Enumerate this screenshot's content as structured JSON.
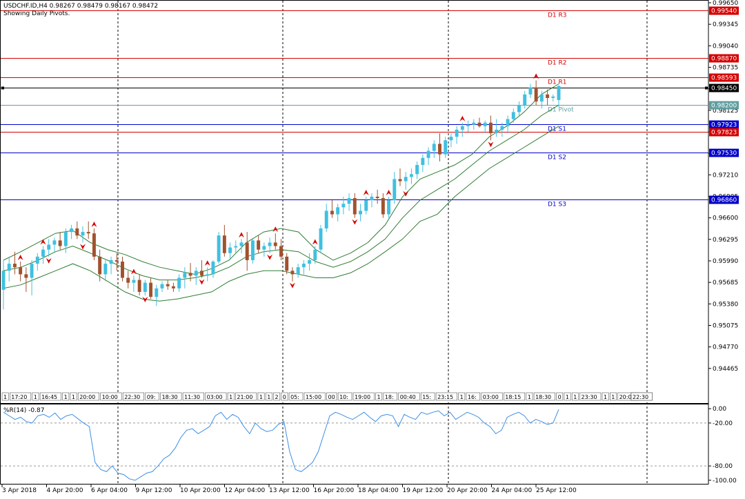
{
  "header": {
    "title": "USDCHF.ID,H4  0.98267 0.98479 0.98167 0.98472",
    "subtitle": "Showing Daily Pivots."
  },
  "indicator": {
    "label": "%R(14) -0.87"
  },
  "colors": {
    "bull": "#40c0e0",
    "bear": "#a0522d",
    "band": "#2e7d32",
    "resistance": "#d40000",
    "support": "#0000c8",
    "pivot": "#5f9ea0",
    "arrow": "#d40000",
    "wpr": "#3a8ee6"
  },
  "chart_data": [
    {
      "type": "candlestick",
      "title": "USDCHF.ID,H4",
      "ylim": [
        0.9415,
        0.9965
      ],
      "y_ticks": [
        "0.99650",
        "0.99345",
        "0.99040",
        "0.98735",
        "0.98430",
        "0.98125",
        "0.97820",
        "0.97515",
        "0.97210",
        "0.96905",
        "0.96600",
        "0.96295",
        "0.95990",
        "0.95685",
        "0.95380",
        "0.95075",
        "0.94770",
        "0.94465"
      ],
      "levels": [
        {
          "name": "D1 R3",
          "value": 0.9954,
          "label": "0.99540",
          "kind": "resistance"
        },
        {
          "name": "D1 R2",
          "value": 0.9887,
          "label": "0.98870",
          "kind": "resistance"
        },
        {
          "name": "D1 R1",
          "value": 0.98593,
          "label": "0.98593",
          "kind": "resistance"
        },
        {
          "name": "",
          "value": 0.9845,
          "label": "0.98450",
          "kind": "current"
        },
        {
          "name": "D1 Pivot",
          "value": 0.982,
          "label": "0.98200",
          "kind": "pivot"
        },
        {
          "name": "D1 S1",
          "value": 0.97923,
          "label": "0.97923",
          "kind": "support"
        },
        {
          "name": "",
          "value": 0.97823,
          "label": "0.97823",
          "kind": "resistance"
        },
        {
          "name": "D1 S2",
          "value": 0.9753,
          "label": "0.97530",
          "kind": "support"
        },
        {
          "name": "D1 S3",
          "value": 0.9686,
          "label": "0.96860",
          "kind": "support"
        }
      ],
      "x_tick_labels": [
        "3 Apr 2018",
        "4 Apr 20:00",
        "6 Apr 04:00",
        "9 Apr 12:00",
        "10 Apr 20:00",
        "12 Apr 04:00",
        "13 Apr 12:00",
        "16 Apr 20:00",
        "18 Apr 04:00",
        "19 Apr 12:00",
        "20 Apr 20:00",
        "24 Apr 04:00",
        "25 Apr 12:00"
      ],
      "period_separators": [
        "4 Apr 2018",
        "5 Apr 2018",
        "6 Apr 2018",
        "9 Apr 2018",
        "10 Apr 2018",
        "11 Apr 2018",
        "12 Apr 2018"
      ],
      "candles_ohlc": [
        [
          0.9558,
          0.96,
          0.953,
          0.9585
        ],
        [
          0.9585,
          0.9605,
          0.957,
          0.9595
        ],
        [
          0.9595,
          0.9612,
          0.958,
          0.959
        ],
        [
          0.959,
          0.9598,
          0.957,
          0.958
        ],
        [
          0.958,
          0.959,
          0.9555,
          0.9575
        ],
        [
          0.9575,
          0.96,
          0.955,
          0.9595
        ],
        [
          0.9595,
          0.961,
          0.9585,
          0.9605
        ],
        [
          0.9605,
          0.962,
          0.9595,
          0.9615
        ],
        [
          0.9615,
          0.963,
          0.9605,
          0.9622
        ],
        [
          0.9622,
          0.9632,
          0.9612,
          0.9628
        ],
        [
          0.9628,
          0.964,
          0.9615,
          0.962
        ],
        [
          0.962,
          0.9645,
          0.961,
          0.964
        ],
        [
          0.964,
          0.965,
          0.963,
          0.9645
        ],
        [
          0.9645,
          0.9655,
          0.963,
          0.9635
        ],
        [
          0.9635,
          0.9648,
          0.9625,
          0.964
        ],
        [
          0.964,
          0.9655,
          0.963,
          0.9638
        ],
        [
          0.9638,
          0.9645,
          0.96,
          0.9605
        ],
        [
          0.9605,
          0.9615,
          0.957,
          0.958
        ],
        [
          0.958,
          0.96,
          0.957,
          0.9595
        ],
        [
          0.9595,
          0.9605,
          0.958,
          0.96
        ],
        [
          0.96,
          0.961,
          0.9585,
          0.9598
        ],
        [
          0.9598,
          0.9605,
          0.957,
          0.9575
        ],
        [
          0.9575,
          0.9585,
          0.956,
          0.9568
        ],
        [
          0.9568,
          0.9578,
          0.9555,
          0.9572
        ],
        [
          0.9572,
          0.958,
          0.955,
          0.9555
        ],
        [
          0.9555,
          0.9572,
          0.955,
          0.9568
        ],
        [
          0.9568,
          0.9575,
          0.9545,
          0.9548
        ],
        [
          0.9548,
          0.9565,
          0.9535,
          0.956
        ],
        [
          0.956,
          0.957,
          0.9555,
          0.9566
        ],
        [
          0.9566,
          0.9572,
          0.9558,
          0.9563
        ],
        [
          0.9563,
          0.9568,
          0.9555,
          0.956
        ],
        [
          0.956,
          0.958,
          0.9555,
          0.9575
        ],
        [
          0.9575,
          0.959,
          0.956,
          0.9582
        ],
        [
          0.9582,
          0.9596,
          0.957,
          0.9578
        ],
        [
          0.9578,
          0.959,
          0.9565,
          0.9585
        ],
        [
          0.9585,
          0.96,
          0.9575,
          0.9578
        ],
        [
          0.9578,
          0.959,
          0.957,
          0.958
        ],
        [
          0.958,
          0.96,
          0.9575,
          0.9598
        ],
        [
          0.9598,
          0.964,
          0.9595,
          0.9635
        ],
        [
          0.9635,
          0.965,
          0.9605,
          0.961
        ],
        [
          0.961,
          0.9625,
          0.96,
          0.9618
        ],
        [
          0.9618,
          0.9628,
          0.961,
          0.962
        ],
        [
          0.962,
          0.963,
          0.961,
          0.9625
        ],
        [
          0.9625,
          0.964,
          0.9585,
          0.96
        ],
        [
          0.96,
          0.963,
          0.9595,
          0.9628
        ],
        [
          0.9628,
          0.9635,
          0.961,
          0.9615
        ],
        [
          0.9615,
          0.9625,
          0.9605,
          0.962
        ],
        [
          0.962,
          0.9632,
          0.961,
          0.9625
        ],
        [
          0.9625,
          0.9638,
          0.9615,
          0.962
        ],
        [
          0.962,
          0.963,
          0.96,
          0.9605
        ],
        [
          0.9605,
          0.961,
          0.958,
          0.9585
        ],
        [
          0.9585,
          0.959,
          0.957,
          0.958
        ],
        [
          0.958,
          0.9595,
          0.9575,
          0.959
        ],
        [
          0.959,
          0.96,
          0.958,
          0.9595
        ],
        [
          0.9595,
          0.961,
          0.9585,
          0.96
        ],
        [
          0.96,
          0.962,
          0.9595,
          0.9615
        ],
        [
          0.9615,
          0.965,
          0.961,
          0.9645
        ],
        [
          0.9645,
          0.968,
          0.964,
          0.967
        ],
        [
          0.967,
          0.9685,
          0.966,
          0.9665
        ],
        [
          0.9665,
          0.968,
          0.9655,
          0.9675
        ],
        [
          0.9675,
          0.969,
          0.9665,
          0.968
        ],
        [
          0.968,
          0.9695,
          0.967,
          0.9688
        ],
        [
          0.9688,
          0.9695,
          0.966,
          0.9665
        ],
        [
          0.9665,
          0.968,
          0.9655,
          0.967
        ],
        [
          0.967,
          0.969,
          0.9665,
          0.9685
        ],
        [
          0.9685,
          0.9695,
          0.9675,
          0.969
        ],
        [
          0.969,
          0.97,
          0.968,
          0.9688
        ],
        [
          0.9688,
          0.9695,
          0.966,
          0.9665
        ],
        [
          0.9665,
          0.969,
          0.966,
          0.9685
        ],
        [
          0.9685,
          0.9725,
          0.968,
          0.9715
        ],
        [
          0.9715,
          0.973,
          0.9705,
          0.9712
        ],
        [
          0.9712,
          0.9725,
          0.97,
          0.9718
        ],
        [
          0.9718,
          0.973,
          0.9708,
          0.9722
        ],
        [
          0.9722,
          0.974,
          0.9715,
          0.9735
        ],
        [
          0.9735,
          0.975,
          0.9725,
          0.9745
        ],
        [
          0.9745,
          0.976,
          0.9735,
          0.9755
        ],
        [
          0.9755,
          0.977,
          0.9745,
          0.9765
        ],
        [
          0.9765,
          0.978,
          0.974,
          0.975
        ],
        [
          0.975,
          0.9775,
          0.9745,
          0.977
        ],
        [
          0.977,
          0.978,
          0.976,
          0.9775
        ],
        [
          0.9775,
          0.979,
          0.9765,
          0.9785
        ],
        [
          0.9785,
          0.9795,
          0.9775,
          0.979
        ],
        [
          0.979,
          0.9798,
          0.9782,
          0.9792
        ],
        [
          0.9792,
          0.98,
          0.9785,
          0.9795
        ],
        [
          0.9795,
          0.9802,
          0.9788,
          0.979
        ],
        [
          0.979,
          0.9798,
          0.978,
          0.9795
        ],
        [
          0.9795,
          0.9805,
          0.977,
          0.978
        ],
        [
          0.978,
          0.98,
          0.9775,
          0.9785
        ],
        [
          0.9785,
          0.9795,
          0.9775,
          0.979
        ],
        [
          0.979,
          0.9805,
          0.978,
          0.98
        ],
        [
          0.98,
          0.9815,
          0.9795,
          0.981
        ],
        [
          0.981,
          0.9825,
          0.9805,
          0.982
        ],
        [
          0.982,
          0.984,
          0.9815,
          0.9835
        ],
        [
          0.9835,
          0.985,
          0.983,
          0.9845
        ],
        [
          0.9845,
          0.9855,
          0.982,
          0.9825
        ],
        [
          0.9825,
          0.984,
          0.9815,
          0.9835
        ],
        [
          0.9835,
          0.9842,
          0.982,
          0.983
        ],
        [
          0.983,
          0.9835,
          0.9825,
          0.9832
        ],
        [
          0.9827,
          0.9848,
          0.9817,
          0.9847
        ]
      ],
      "bollinger": {
        "upper": [
          0.96,
          0.9612,
          0.9625,
          0.9638,
          0.9642,
          0.9625,
          0.9615,
          0.9608,
          0.9598,
          0.959,
          0.9585,
          0.958,
          0.9588,
          0.96,
          0.9625,
          0.964,
          0.9645,
          0.964,
          0.9615,
          0.96,
          0.961,
          0.9625,
          0.965,
          0.969,
          0.9715,
          0.9725,
          0.9735,
          0.975,
          0.9775,
          0.979,
          0.981,
          0.9835,
          0.985
        ],
        "middle": [
          0.9585,
          0.959,
          0.96,
          0.9612,
          0.962,
          0.961,
          0.96,
          0.9588,
          0.9578,
          0.9572,
          0.9572,
          0.9575,
          0.958,
          0.959,
          0.9605,
          0.9612,
          0.9615,
          0.9612,
          0.9598,
          0.959,
          0.9598,
          0.9612,
          0.963,
          0.966,
          0.9685,
          0.97,
          0.9715,
          0.9735,
          0.9755,
          0.977,
          0.9785,
          0.9805,
          0.982
        ],
        "lower": [
          0.956,
          0.9565,
          0.9575,
          0.9585,
          0.9595,
          0.9585,
          0.957,
          0.9555,
          0.9545,
          0.9542,
          0.9545,
          0.955,
          0.9555,
          0.957,
          0.958,
          0.9585,
          0.9585,
          0.958,
          0.9575,
          0.9575,
          0.9582,
          0.9595,
          0.9612,
          0.963,
          0.9655,
          0.9665,
          0.969,
          0.971,
          0.973,
          0.9745,
          0.976,
          0.9775,
          0.979
        ]
      }
    },
    {
      "type": "line",
      "title": "%R(14) -0.87",
      "ylim": [
        -104,
        4
      ],
      "y_ticks": [
        "0.00",
        "-20.00",
        "-80.00",
        "-100.00"
      ],
      "levels": [
        -20,
        -80
      ],
      "values": [
        -5,
        -10,
        -15,
        -12,
        -18,
        -20,
        -10,
        -8,
        -12,
        -6,
        -15,
        -10,
        -8,
        -14,
        -20,
        -25,
        -75,
        -85,
        -88,
        -80,
        -90,
        -92,
        -98,
        -100,
        -95,
        -90,
        -88,
        -80,
        -70,
        -65,
        -55,
        -40,
        -30,
        -28,
        -35,
        -30,
        -25,
        -10,
        -5,
        -15,
        -8,
        -12,
        -25,
        -35,
        -20,
        -28,
        -32,
        -30,
        -22,
        -18,
        -60,
        -85,
        -88,
        -82,
        -75,
        -60,
        -35,
        -10,
        -5,
        -8,
        -12,
        -15,
        -10,
        -5,
        -12,
        -18,
        -10,
        -8,
        -10,
        -25,
        -8,
        -12,
        -15,
        -5,
        -8,
        -5,
        -3,
        -10,
        -5,
        -15,
        -10,
        -5,
        -8,
        -12,
        -20,
        -25,
        -35,
        -30,
        -12,
        -8,
        -5,
        -10,
        -20,
        -15,
        -18,
        -22,
        -20,
        -1
      ]
    }
  ],
  "pivots_text": {
    "r3": "D1 R3",
    "r2": "D1 R2",
    "r1": "D1 R1",
    "pivot": "D1 Pivot",
    "s1": "D1 S1",
    "s2": "D1 S2",
    "s3": "D1 S3"
  },
  "time_strip": [
    "1",
    "17:20",
    "1",
    "16:45",
    "1",
    "1",
    "20:00",
    "10:00",
    "22:30",
    "09:",
    "18:30",
    "11:30",
    "03:00",
    "1",
    "21:00",
    "1",
    "1",
    "2",
    "0",
    "05:",
    "15:00",
    "00",
    "10:",
    "19:00",
    "1",
    "18:",
    "00:40",
    "15:",
    "23:15",
    "1",
    "16:",
    "03:00",
    "18:15",
    "1",
    "18:30",
    "0",
    "1",
    "1",
    "23:30",
    "1",
    "1",
    "20:00",
    "20:00",
    "1",
    "22:30"
  ]
}
